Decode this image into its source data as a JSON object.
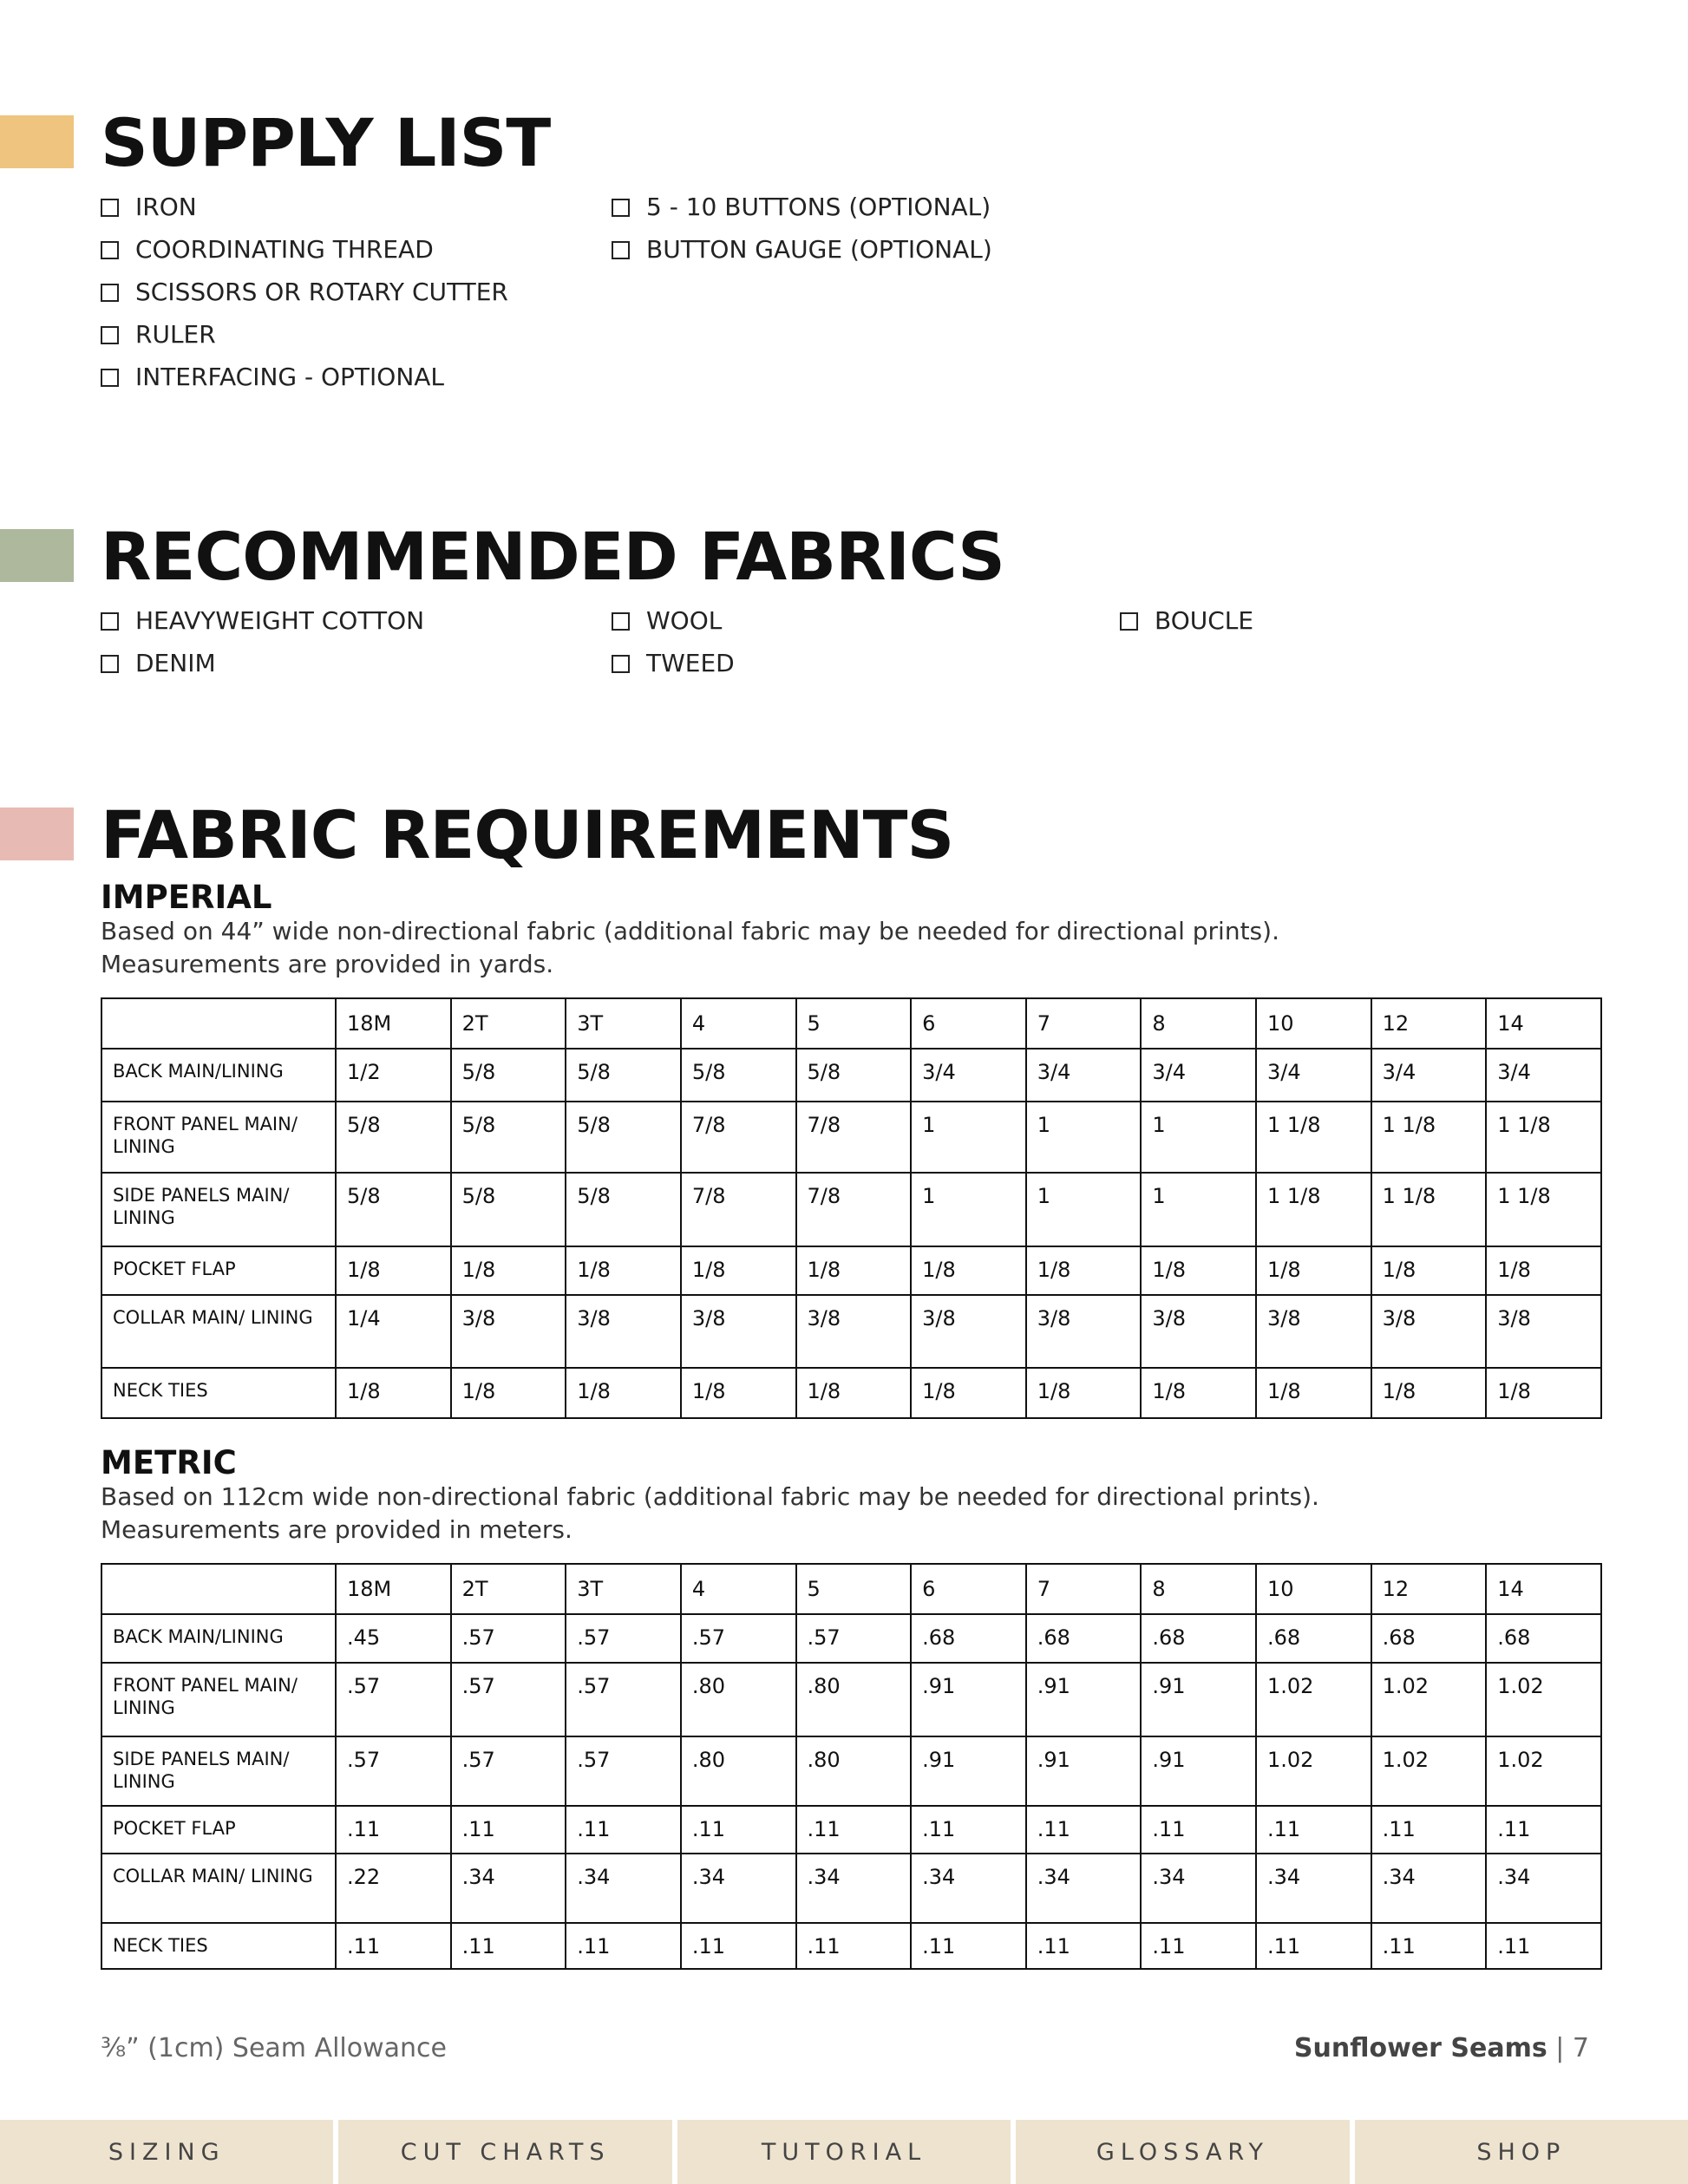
{
  "lists": [
    {
      "title": "SUPPLY LIST",
      "color": "#eec47e",
      "columns": [
        [
          "IRON",
          "COORDINATING THREAD",
          "SCISSORS OR ROTARY CUTTER",
          "RULER",
          "INTERFACING - OPTIONAL"
        ],
        [
          "5 - 10 BUTTONS (OPTIONAL)",
          "BUTTON GAUGE (OPTIONAL)"
        ]
      ]
    },
    {
      "title": "RECOMMENDED FABRICS",
      "color": "#adb89c",
      "columns": [
        [
          "HEAVYWEIGHT COTTON",
          "DENIM"
        ],
        [
          "WOOL",
          "TWEED"
        ],
        [
          "BOUCLE"
        ]
      ]
    }
  ],
  "requirements": {
    "title": "FABRIC REQUIREMENTS",
    "color": "#e7bbb4",
    "tables": [
      {
        "heading": "IMPERIAL",
        "description": [
          "Based on 44” wide non-directional fabric (additional fabric may be needed for directional prints).",
          "Measurements are provided in yards."
        ],
        "sizes": [
          "18M",
          "2T",
          "3T",
          "4",
          "5",
          "6",
          "7",
          "8",
          "10",
          "12",
          "14"
        ],
        "rows": [
          {
            "label": "BACK MAIN/LINING",
            "values": [
              "1/2",
              "5/8",
              "5/8",
              "5/8",
              "5/8",
              "3/4",
              "3/4",
              "3/4",
              "3/4",
              "3/4",
              "3/4"
            ]
          },
          {
            "label": "FRONT PANEL MAIN/ LINING",
            "values": [
              "5/8",
              "5/8",
              "5/8",
              "7/8",
              "7/8",
              "1",
              "1",
              "1",
              "1 1/8",
              "1 1/8",
              "1 1/8"
            ]
          },
          {
            "label": "SIDE PANELS MAIN/ LINING",
            "values": [
              "5/8",
              "5/8",
              "5/8",
              "7/8",
              "7/8",
              "1",
              "1",
              "1",
              "1 1/8",
              "1 1/8",
              "1 1/8"
            ]
          },
          {
            "label": "POCKET FLAP",
            "values": [
              "1/8",
              "1/8",
              "1/8",
              "1/8",
              "1/8",
              "1/8",
              "1/8",
              "1/8",
              "1/8",
              "1/8",
              "1/8"
            ]
          },
          {
            "label": "COLLAR MAIN/ LINING",
            "values": [
              "1/4",
              "3/8",
              "3/8",
              "3/8",
              "3/8",
              "3/8",
              "3/8",
              "3/8",
              "3/8",
              "3/8",
              "3/8"
            ]
          },
          {
            "label": "NECK TIES",
            "values": [
              "1/8",
              "1/8",
              "1/8",
              "1/8",
              "1/8",
              "1/8",
              "1/8",
              "1/8",
              "1/8",
              "1/8",
              "1/8"
            ]
          }
        ]
      },
      {
        "heading": "METRIC",
        "description": [
          "Based on 112cm wide non-directional fabric (additional fabric may be needed for directional prints).",
          "Measurements are provided in meters."
        ],
        "sizes": [
          "18M",
          "2T",
          "3T",
          "4",
          "5",
          "6",
          "7",
          "8",
          "10",
          "12",
          "14"
        ],
        "rows": [
          {
            "label": "BACK MAIN/LINING",
            "values": [
              ".45",
              ".57",
              ".57",
              ".57",
              ".57",
              ".68",
              ".68",
              ".68",
              ".68",
              ".68",
              ".68"
            ]
          },
          {
            "label": "FRONT PANEL MAIN/ LINING",
            "values": [
              ".57",
              ".57",
              ".57",
              ".80",
              ".80",
              ".91",
              ".91",
              ".91",
              "1.02",
              "1.02",
              "1.02"
            ]
          },
          {
            "label": "SIDE PANELS MAIN/ LINING",
            "values": [
              ".57",
              ".57",
              ".57",
              ".80",
              ".80",
              ".91",
              ".91",
              ".91",
              "1.02",
              "1.02",
              "1.02"
            ]
          },
          {
            "label": "POCKET FLAP",
            "values": [
              ".11",
              ".11",
              ".11",
              ".11",
              ".11",
              ".11",
              ".11",
              ".11",
              ".11",
              ".11",
              ".11"
            ]
          },
          {
            "label": "COLLAR MAIN/ LINING",
            "values": [
              ".22",
              ".34",
              ".34",
              ".34",
              ".34",
              ".34",
              ".34",
              ".34",
              ".34",
              ".34",
              ".34"
            ]
          },
          {
            "label": "NECK TIES",
            "values": [
              ".11",
              ".11",
              ".11",
              ".11",
              ".11",
              ".11",
              ".11",
              ".11",
              ".11",
              ".11",
              ".11"
            ]
          }
        ]
      }
    ]
  },
  "footer": {
    "note": "⅜” (1cm) Seam Allowance",
    "brand": "Sunflower Seams",
    "page": "| 7"
  },
  "nav": [
    "SIZING",
    "CUT CHARTS",
    "TUTORIAL",
    "GLOSSARY",
    "SHOP"
  ]
}
